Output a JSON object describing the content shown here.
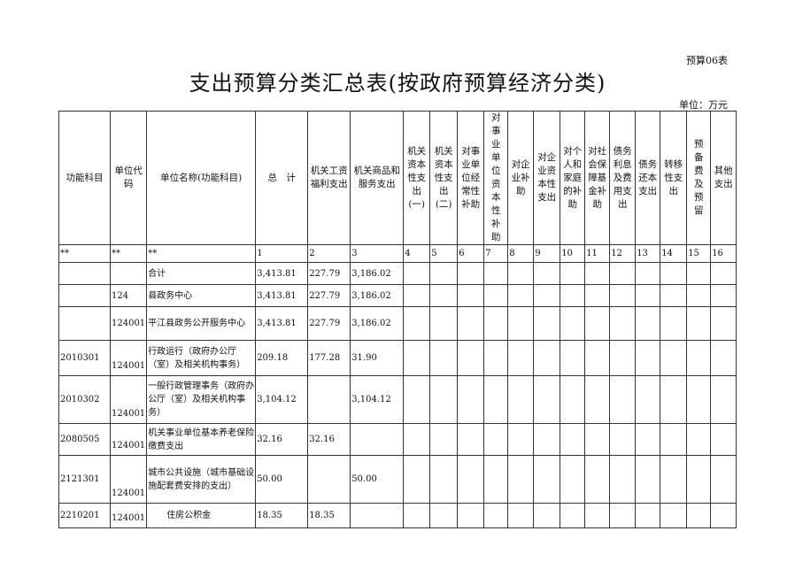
{
  "form_code": "预算06表",
  "title": "支出预算分类汇总表(按政府预算经济分类)",
  "unit": "单位：万元",
  "table": {
    "headers": [
      "功能科目",
      "单位代码",
      "单位名称(功能科目)",
      "总　计",
      "机关工资福利支出",
      "机关商品和服务支出",
      "机关资本性支出(一)",
      "机关资本性支出(二)",
      "对事业单位经常性补助",
      "对事业单位资本性补助",
      "对企业补助",
      "对企业资本性支出",
      "对个人和家庭的补助",
      "对社会保障基金补助",
      "债务利息及费用支出",
      "债务还本支出",
      "转移性支出",
      "预备费及预留",
      "其他支出"
    ],
    "index_row": [
      "**",
      "**",
      "**",
      "1",
      "2",
      "3",
      "4",
      "5",
      "6",
      "7",
      "8",
      "9",
      "10",
      "11",
      "12",
      "13",
      "14",
      "15",
      "16"
    ],
    "rows": [
      [
        "",
        "",
        "合计",
        "3,413.81",
        "227.79",
        "3,186.02"
      ],
      [
        "",
        "124",
        "县政务中心",
        "3,413.81",
        "227.79",
        "3,186.02"
      ],
      [
        "",
        "124001",
        "平江县政务公开服务中心",
        "3,413.81",
        "227.79",
        "3,186.02"
      ],
      [
        "2010301",
        "124001",
        "行政运行（政府办公厅（室）及相关机构事务）",
        "209.18",
        "177.28",
        "31.90"
      ],
      [
        "2010302",
        "124001",
        "一般行政管理事务（政府办公厅（室）及相关机构事务）",
        "3,104.12",
        "",
        "3,104.12"
      ],
      [
        "2080505",
        "124001",
        "机关事业单位基本养老保险缴费支出",
        "32.16",
        "32.16",
        ""
      ],
      [
        "2121301",
        "124001",
        "城市公共设施（城市基础设施配套费安排的支出）",
        "50.00",
        "",
        "50.00"
      ],
      [
        "2210201",
        "124001",
        "住房公积金",
        "18.35",
        "18.35",
        ""
      ]
    ]
  }
}
